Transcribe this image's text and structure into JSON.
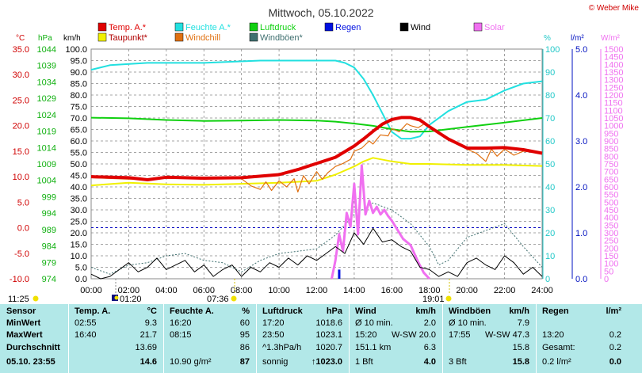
{
  "title": "Mittwoch, 05.10.2022",
  "credit": "© Weber Mike",
  "axis_units": {
    "temp": "°C",
    "pressure": "hPa",
    "wind": "km/h",
    "humidity": "%",
    "rain": "l/m²",
    "solar": "W/m²"
  },
  "legend": [
    {
      "label": "Temp. A.*",
      "color": "#e00000"
    },
    {
      "label": "Feuchte A.*",
      "color": "#22e0e0"
    },
    {
      "label": "Luftdruck",
      "color": "#10d010"
    },
    {
      "label": "Regen",
      "color": "#0010e0"
    },
    {
      "label": "Wind",
      "color": "#000000"
    },
    {
      "label": "Solar",
      "color": "#f070f0"
    },
    {
      "label": "Taupunkt*",
      "color": "#f0f000"
    },
    {
      "label": "Windchill",
      "color": "#e07010"
    },
    {
      "label": "Windböen*",
      "color": "#407070"
    }
  ],
  "sun": {
    "sunrise_label": "07:36",
    "sunset_label": "19:01",
    "moonset_label": "11:25",
    "moonrise_label": "01:20"
  },
  "chart_data": {
    "type": "line",
    "title": "Mittwoch, 05.10.2022",
    "x_unit": "hour of day",
    "x_ticks": [
      "00:00",
      "02:00",
      "04:00",
      "06:00",
      "08:00",
      "10:00",
      "12:00",
      "14:00",
      "16:00",
      "18:00",
      "20:00",
      "22:00",
      "24:00"
    ],
    "xlim": [
      0,
      24
    ],
    "axes": {
      "wind_kmh": {
        "range": [
          0,
          100
        ],
        "ticks": [
          "0.0",
          "5.0",
          "10.0",
          "15.0",
          "20.0",
          "25.0",
          "30.0",
          "35.0",
          "40.0",
          "45.0",
          "50.0",
          "55.0",
          "60.0",
          "65.0",
          "70.0",
          "75.0",
          "80.0",
          "85.0",
          "90.0",
          "95.0",
          "100.0"
        ]
      },
      "temp_c": {
        "range": [
          -10,
          35
        ],
        "ticks": [
          "-10.0",
          "-5.0",
          "0.0",
          "5.0",
          "10.0",
          "15.0",
          "20.0",
          "25.0",
          "30.0",
          "35.0"
        ]
      },
      "pressure_hpa": {
        "range": [
          974,
          1044
        ],
        "ticks": [
          "974",
          "979",
          "984",
          "989",
          "994",
          "999",
          "1004",
          "1009",
          "1014",
          "1019",
          "1024",
          "1029",
          "1034",
          "1039",
          "1044"
        ]
      },
      "humidity_pct": {
        "range": [
          0,
          100
        ],
        "ticks": [
          "0",
          "10",
          "20",
          "30",
          "40",
          "50",
          "60",
          "70",
          "80",
          "90",
          "100"
        ]
      },
      "rain_lm2": {
        "range": [
          0,
          5
        ],
        "ticks": [
          "0.0",
          "1.0",
          "2.0",
          "3.0",
          "4.0",
          "5.0"
        ]
      },
      "solar_wm2": {
        "range": [
          0,
          1500
        ],
        "ticks": [
          "0",
          "50",
          "100",
          "150",
          "200",
          "250",
          "300",
          "350",
          "400",
          "450",
          "500",
          "550",
          "600",
          "650",
          "700",
          "750",
          "800",
          "850",
          "900",
          "950",
          "1000",
          "1050",
          "1100",
          "1150",
          "1200",
          "1250",
          "1300",
          "1350",
          "1400",
          "1450",
          "1500"
        ]
      }
    },
    "series": [
      {
        "name": "Temp. A.*",
        "axis": "temp_c",
        "x": [
          0,
          2,
          3,
          4,
          6,
          8,
          10,
          11,
          12,
          13,
          14,
          14.5,
          15,
          15.5,
          16,
          16.5,
          17,
          17.5,
          18,
          19,
          20,
          21,
          22,
          23,
          24
        ],
        "y": [
          10.0,
          9.8,
          9.4,
          9.9,
          9.7,
          9.8,
          10.4,
          11.4,
          12.6,
          13.8,
          16.0,
          17.4,
          18.9,
          20.3,
          21.2,
          21.6,
          21.6,
          21.1,
          19.8,
          17.4,
          15.6,
          15.6,
          15.7,
          15.3,
          14.6
        ]
      },
      {
        "name": "Taupunkt*",
        "axis": "temp_c",
        "x": [
          0,
          2,
          4,
          6,
          8,
          10,
          12,
          13,
          14,
          14.5,
          15,
          16,
          17,
          18,
          20,
          22,
          24
        ],
        "y": [
          8.3,
          8.8,
          8.5,
          8.4,
          8.6,
          8.8,
          9.2,
          10.4,
          12.0,
          13.0,
          13.7,
          13.0,
          12.5,
          12.5,
          12.3,
          12.3,
          12.1
        ]
      },
      {
        "name": "Feuchte A.*",
        "axis": "humidity_pct",
        "x": [
          0,
          1,
          3,
          6,
          9,
          12,
          13,
          13.5,
          14,
          14.5,
          15,
          15.5,
          16,
          16.5,
          17,
          17.5,
          18,
          19,
          20,
          21,
          22,
          23,
          24
        ],
        "y": [
          91,
          93,
          94,
          94,
          95,
          95,
          95,
          94,
          92,
          87,
          80,
          72,
          64,
          61,
          61,
          62,
          67,
          73,
          77,
          78,
          82,
          85,
          86
        ]
      },
      {
        "name": "Luftdruck",
        "axis": "pressure_hpa",
        "x": [
          0,
          2,
          4,
          6,
          8,
          10,
          12,
          13,
          14,
          15,
          16,
          17,
          18,
          19,
          20,
          22,
          24
        ],
        "y": [
          1023.1,
          1022.9,
          1022.4,
          1022.1,
          1022.2,
          1022.4,
          1022.2,
          1021.9,
          1021.3,
          1020.6,
          1019.6,
          1018.8,
          1018.9,
          1019.6,
          1020.3,
          1021.6,
          1023.0
        ]
      },
      {
        "name": "Windchill",
        "axis": "temp_c",
        "x": [
          0,
          2,
          4,
          6,
          7,
          8,
          8.5,
          9,
          9.3,
          9.6,
          10,
          10.4,
          10.8,
          11,
          11.3,
          11.6,
          12,
          12.3,
          12.6,
          13,
          13.4,
          13.8,
          14,
          14.4,
          14.8,
          15,
          15.4,
          15.8,
          16,
          16.4,
          16.8,
          17,
          17.4,
          17.8,
          18,
          19,
          20,
          20.5,
          21,
          21.3,
          21.6,
          22,
          22.5,
          23,
          24
        ],
        "y": [
          9.8,
          9.5,
          9.7,
          9.6,
          9.6,
          9.6,
          8.2,
          7.5,
          9.0,
          7.3,
          9.2,
          8.0,
          9.6,
          7.0,
          10.2,
          8.6,
          11.0,
          9.5,
          10.8,
          12.0,
          12.6,
          13.4,
          15.0,
          15.6,
          17.0,
          16.4,
          18.2,
          18.0,
          19.4,
          18.8,
          20.4,
          20.0,
          19.6,
          20.5,
          19.8,
          17.4,
          15.4,
          14.6,
          13.0,
          15.4,
          14.0,
          15.4,
          14.2,
          15.0,
          14.6
        ]
      },
      {
        "name": "Wind",
        "axis": "wind_kmh",
        "x": [
          0,
          0.5,
          1,
          1.5,
          2,
          2.5,
          3,
          3.5,
          4,
          4.5,
          5,
          5.5,
          6,
          6.5,
          7,
          7.5,
          8,
          8.5,
          9,
          9.5,
          10,
          10.5,
          11,
          11.5,
          12,
          12.5,
          13,
          13.5,
          14,
          14.5,
          15,
          15.5,
          16,
          16.5,
          17,
          17.5,
          18,
          18.5,
          19,
          19.5,
          20,
          20.5,
          21,
          21.5,
          22,
          22.5,
          23,
          23.5,
          24
        ],
        "y": [
          2,
          0,
          1,
          4,
          7,
          3,
          5,
          9,
          4,
          6,
          8,
          3,
          6,
          1,
          4,
          6,
          1,
          5,
          3,
          7,
          5,
          9,
          6,
          10,
          8,
          11,
          14,
          11,
          20,
          15,
          22,
          16,
          17,
          14,
          12,
          5,
          4,
          1,
          3,
          1,
          7,
          9,
          6,
          4,
          10,
          7,
          2,
          5,
          1
        ]
      },
      {
        "name": "Windböen*",
        "axis": "wind_kmh",
        "x": [
          0,
          1,
          2,
          3,
          4,
          5,
          6,
          7,
          8,
          9,
          10,
          11,
          12,
          13,
          14,
          15,
          16,
          17,
          18,
          18.5,
          19,
          20,
          21,
          22,
          23,
          24
        ],
        "y": [
          5,
          2,
          6,
          7,
          10,
          11,
          8,
          7,
          3,
          8,
          11,
          12,
          13,
          19,
          28,
          33,
          30,
          24,
          14,
          6,
          8,
          18,
          21,
          24,
          14,
          5
        ]
      },
      {
        "name": "Solar",
        "axis": "solar_wm2",
        "x": [
          12.8,
          13.0,
          13.2,
          13.4,
          13.6,
          13.8,
          14.0,
          14.2,
          14.4,
          14.6,
          14.8,
          15.0,
          15.2,
          15.4,
          15.6,
          15.8,
          16.0,
          16.3,
          16.6,
          17.0,
          17.4,
          17.7,
          18.0
        ],
        "y": [
          0,
          120,
          290,
          180,
          430,
          340,
          620,
          290,
          740,
          420,
          510,
          430,
          470,
          420,
          450,
          410,
          380,
          320,
          260,
          220,
          110,
          40,
          0
        ]
      },
      {
        "name": "Regen",
        "axis": "rain_lm2",
        "x": [
          13.2
        ],
        "y": [
          0.2
        ]
      }
    ]
  },
  "table": {
    "headers": [
      "Sensor",
      "Temp. A.",
      "°C",
      "Feuchte A.",
      "%",
      "Luftdruck",
      "hPa",
      "Wind",
      "km/h",
      "Windböen",
      "km/h",
      "Regen",
      "l/m²"
    ],
    "rows": [
      {
        "label": "MinWert",
        "cells": [
          "02:55",
          "9.3",
          "16:20",
          "60",
          "17:20",
          "1018.6",
          "Ø 10 min.",
          "2.0",
          "Ø 10 min.",
          "7.9",
          "",
          ""
        ]
      },
      {
        "label": "MaxWert",
        "cells": [
          "16:40",
          "21.7",
          "08:15",
          "95",
          "23:50",
          "1023.1",
          "15:20",
          "W-SW 20.0",
          "17:55",
          "W-SW 47.3",
          "13:20",
          "0.2"
        ]
      },
      {
        "label": "Durchschnitt",
        "cells": [
          "",
          "13.69",
          "",
          "86",
          "^1.3hPa/h",
          "1020.7",
          "151.1 km",
          "6.3",
          "",
          "15.8",
          "Gesamt:",
          "0.2"
        ]
      },
      {
        "label": "05.10. 23:55",
        "cells": [
          "",
          "14.6",
          "10.90 g/m²",
          "87",
          "sonnig",
          "↑1023.0",
          "1 Bft",
          "4.0",
          "3 Bft",
          "15.8",
          "0.2 l/m²",
          "0.0"
        ]
      }
    ]
  }
}
